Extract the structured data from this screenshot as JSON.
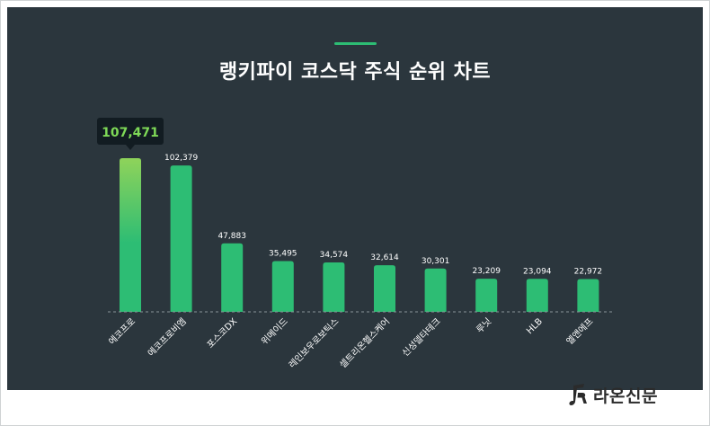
{
  "chart_data": {
    "type": "bar",
    "title": "랭키파이 코스닥 주식 순위 차트",
    "categories": [
      "에코프로",
      "에코프로비엠",
      "포스코DX",
      "위메이드",
      "레인보우로보틱스",
      "셀트리온헬스케어",
      "신성델타테크",
      "루닛",
      "HLB",
      "엘앤에프"
    ],
    "values": [
      107471,
      102379,
      47883,
      35495,
      34574,
      32614,
      30301,
      23209,
      23094,
      22972
    ],
    "value_labels": [
      "107,471",
      "102,379",
      "47,883",
      "35,495",
      "34,574",
      "32,614",
      "30,301",
      "23,209",
      "23,094",
      "22,972"
    ],
    "highlight_index": 0,
    "ylim": [
      0,
      107471
    ],
    "grid": false,
    "colors": {
      "panel": "#2b363d",
      "bar": "#2dbd74",
      "bar_highlight_top": "#8fd35a",
      "tooltip_bg": "#121c22",
      "tooltip_text": "#7ed957",
      "label": "#ffffff",
      "baseline": "#8a9499"
    }
  },
  "brand": {
    "name": "라온신문",
    "logo_icon": "music-note-r-icon"
  }
}
